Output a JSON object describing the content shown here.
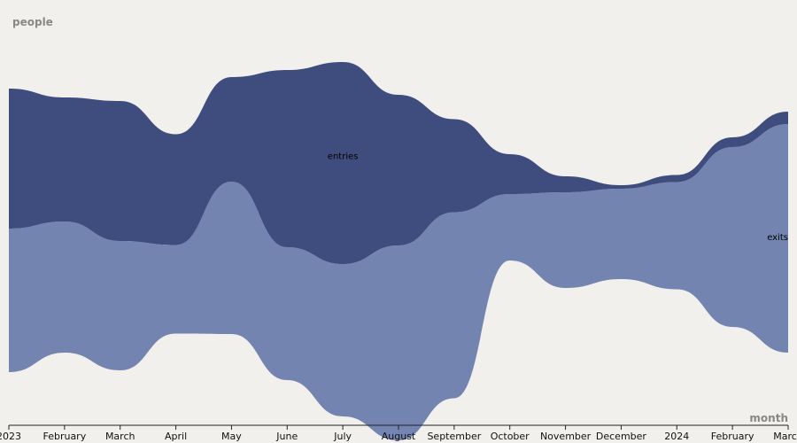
{
  "chart_data": {
    "type": "area",
    "subtype": "streamgraph",
    "ylabel": "people",
    "xlabel": "month",
    "grid": false,
    "legend": "inline",
    "x": [
      "2023-01",
      "2023-02",
      "2023-03",
      "2023-04",
      "2023-05",
      "2023-06",
      "2023-07",
      "2023-08",
      "2023-09",
      "2023-10",
      "2023-11",
      "2023-12",
      "2024-01",
      "2024-02",
      "2024-03"
    ],
    "tick_labels": [
      "2023",
      "February",
      "March",
      "April",
      "May",
      "June",
      "July",
      "August",
      "September",
      "October",
      "November",
      "December",
      "2024",
      "February",
      "March"
    ],
    "series": [
      {
        "name": "exits",
        "color": "#7384b0",
        "values": [
          162,
          148,
          146,
          100,
          172,
          150,
          172,
          220,
          210,
          75,
          108,
          102,
          121,
          203,
          258
        ]
      },
      {
        "name": "entries",
        "color": "#3f4c7e",
        "values": [
          158,
          140,
          158,
          125,
          118,
          200,
          228,
          170,
          105,
          45,
          18,
          4,
          8,
          11,
          14
        ]
      }
    ]
  }
}
